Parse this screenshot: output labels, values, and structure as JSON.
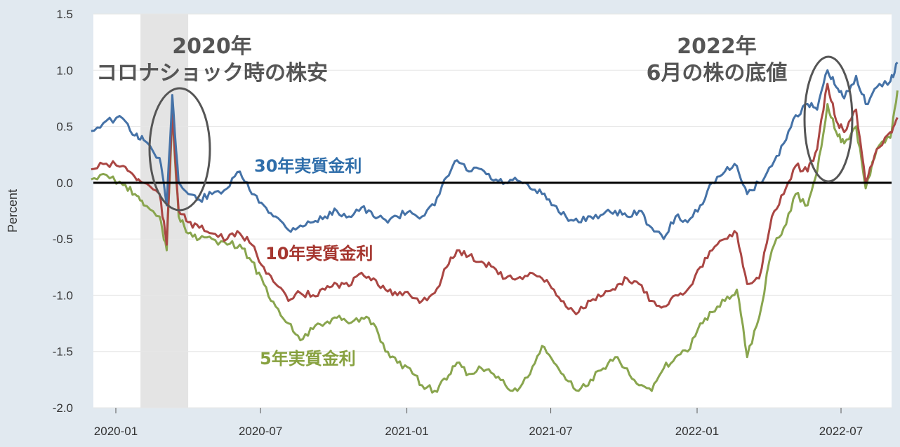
{
  "chart_data": {
    "type": "line",
    "ylabel": "Percent",
    "ylim": [
      -2.0,
      1.5
    ],
    "yticks": [
      "1.5",
      "1.0",
      "0.5",
      "0.0",
      "-0.5",
      "-1.0",
      "-1.5",
      "-2.0"
    ],
    "xticks": [
      "2020-01",
      "2020-07",
      "2021-01",
      "2021-07",
      "2022-01",
      "2022-07"
    ],
    "grid": true,
    "shaded_region": {
      "from": "2020-02",
      "to": "2020-04"
    },
    "reference_line": 0.0,
    "annotations": [
      {
        "line1": "2020年",
        "line2": "コロナショック時の株安",
        "at": "2020-03"
      },
      {
        "line1": "2022年",
        "line2": "6月の株の底値",
        "at": "2022-06"
      }
    ],
    "series": [
      {
        "name": "30年実質金利",
        "color": "#4572a7",
        "points": [
          [
            "2019-12-01",
            0.46
          ],
          [
            "2019-12-20",
            0.55
          ],
          [
            "2020-01-10",
            0.57
          ],
          [
            "2020-01-25",
            0.42
          ],
          [
            "2020-02-05",
            0.38
          ],
          [
            "2020-02-25",
            0.22
          ],
          [
            "2020-03-05",
            -0.2
          ],
          [
            "2020-03-12",
            0.78
          ],
          [
            "2020-03-20",
            0.0
          ],
          [
            "2020-04-01",
            -0.1
          ],
          [
            "2020-04-15",
            -0.15
          ],
          [
            "2020-05-01",
            -0.1
          ],
          [
            "2020-05-20",
            -0.05
          ],
          [
            "2020-06-05",
            0.1
          ],
          [
            "2020-06-20",
            -0.1
          ],
          [
            "2020-07-05",
            -0.2
          ],
          [
            "2020-07-20",
            -0.3
          ],
          [
            "2020-08-05",
            -0.42
          ],
          [
            "2020-08-20",
            -0.38
          ],
          [
            "2020-09-05",
            -0.35
          ],
          [
            "2020-09-20",
            -0.3
          ],
          [
            "2020-10-05",
            -0.25
          ],
          [
            "2020-10-20",
            -0.3
          ],
          [
            "2020-11-05",
            -0.22
          ],
          [
            "2020-11-20",
            -0.3
          ],
          [
            "2020-12-05",
            -0.33
          ],
          [
            "2020-12-20",
            -0.3
          ],
          [
            "2021-01-05",
            -0.25
          ],
          [
            "2021-01-20",
            -0.3
          ],
          [
            "2021-02-05",
            -0.2
          ],
          [
            "2021-02-20",
            0.05
          ],
          [
            "2021-03-05",
            0.2
          ],
          [
            "2021-03-20",
            0.1
          ],
          [
            "2021-04-05",
            0.12
          ],
          [
            "2021-04-20",
            0.02
          ],
          [
            "2021-05-05",
            0.0
          ],
          [
            "2021-05-20",
            0.02
          ],
          [
            "2021-06-05",
            -0.05
          ],
          [
            "2021-06-20",
            -0.1
          ],
          [
            "2021-07-05",
            -0.2
          ],
          [
            "2021-07-20",
            -0.3
          ],
          [
            "2021-08-05",
            -0.35
          ],
          [
            "2021-08-20",
            -0.3
          ],
          [
            "2021-09-05",
            -0.28
          ],
          [
            "2021-09-20",
            -0.25
          ],
          [
            "2021-10-05",
            -0.3
          ],
          [
            "2021-10-20",
            -0.25
          ],
          [
            "2021-11-05",
            -0.4
          ],
          [
            "2021-11-20",
            -0.5
          ],
          [
            "2021-12-05",
            -0.3
          ],
          [
            "2021-12-20",
            -0.35
          ],
          [
            "2022-01-05",
            -0.2
          ],
          [
            "2022-01-20",
            0.0
          ],
          [
            "2022-02-05",
            0.1
          ],
          [
            "2022-02-20",
            0.15
          ],
          [
            "2022-03-05",
            -0.1
          ],
          [
            "2022-03-20",
            0.0
          ],
          [
            "2022-04-05",
            0.15
          ],
          [
            "2022-04-20",
            0.35
          ],
          [
            "2022-05-05",
            0.6
          ],
          [
            "2022-05-20",
            0.7
          ],
          [
            "2022-06-01",
            0.65
          ],
          [
            "2022-06-14",
            1.0
          ],
          [
            "2022-06-25",
            0.85
          ],
          [
            "2022-07-05",
            0.75
          ],
          [
            "2022-07-20",
            0.95
          ],
          [
            "2022-08-01",
            0.7
          ],
          [
            "2022-08-15",
            0.85
          ],
          [
            "2022-09-01",
            0.9
          ],
          [
            "2022-09-10",
            1.07
          ]
        ]
      },
      {
        "name": "10年実質金利",
        "color": "#aa4643",
        "points": [
          [
            "2019-12-01",
            0.12
          ],
          [
            "2019-12-20",
            0.17
          ],
          [
            "2020-01-10",
            0.15
          ],
          [
            "2020-01-25",
            0.05
          ],
          [
            "2020-02-05",
            0.0
          ],
          [
            "2020-02-25",
            -0.1
          ],
          [
            "2020-03-05",
            -0.55
          ],
          [
            "2020-03-12",
            0.65
          ],
          [
            "2020-03-20",
            -0.25
          ],
          [
            "2020-04-01",
            -0.35
          ],
          [
            "2020-04-15",
            -0.4
          ],
          [
            "2020-05-01",
            -0.45
          ],
          [
            "2020-05-20",
            -0.5
          ],
          [
            "2020-06-05",
            -0.45
          ],
          [
            "2020-06-20",
            -0.55
          ],
          [
            "2020-07-05",
            -0.75
          ],
          [
            "2020-07-20",
            -0.9
          ],
          [
            "2020-08-05",
            -1.05
          ],
          [
            "2020-08-20",
            -0.98
          ],
          [
            "2020-09-05",
            -1.0
          ],
          [
            "2020-09-20",
            -0.95
          ],
          [
            "2020-10-05",
            -0.9
          ],
          [
            "2020-10-20",
            -0.92
          ],
          [
            "2020-11-05",
            -0.8
          ],
          [
            "2020-11-20",
            -0.85
          ],
          [
            "2020-12-05",
            -0.95
          ],
          [
            "2020-12-20",
            -1.0
          ],
          [
            "2021-01-05",
            -1.0
          ],
          [
            "2021-01-20",
            -1.05
          ],
          [
            "2021-02-05",
            -0.98
          ],
          [
            "2021-02-20",
            -0.75
          ],
          [
            "2021-03-05",
            -0.6
          ],
          [
            "2021-03-20",
            -0.65
          ],
          [
            "2021-04-05",
            -0.7
          ],
          [
            "2021-04-20",
            -0.75
          ],
          [
            "2021-05-05",
            -0.85
          ],
          [
            "2021-05-20",
            -0.85
          ],
          [
            "2021-06-05",
            -0.8
          ],
          [
            "2021-06-20",
            -0.85
          ],
          [
            "2021-07-05",
            -0.95
          ],
          [
            "2021-07-20",
            -1.1
          ],
          [
            "2021-08-05",
            -1.15
          ],
          [
            "2021-08-20",
            -1.05
          ],
          [
            "2021-09-05",
            -1.0
          ],
          [
            "2021-09-20",
            -0.95
          ],
          [
            "2021-10-05",
            -0.85
          ],
          [
            "2021-10-20",
            -0.9
          ],
          [
            "2021-11-05",
            -1.05
          ],
          [
            "2021-11-20",
            -1.1
          ],
          [
            "2021-12-05",
            -1.0
          ],
          [
            "2021-12-20",
            -0.95
          ],
          [
            "2022-01-05",
            -0.75
          ],
          [
            "2022-01-20",
            -0.6
          ],
          [
            "2022-02-05",
            -0.5
          ],
          [
            "2022-02-20",
            -0.45
          ],
          [
            "2022-03-05",
            -0.9
          ],
          [
            "2022-03-20",
            -0.85
          ],
          [
            "2022-04-05",
            -0.3
          ],
          [
            "2022-04-20",
            -0.1
          ],
          [
            "2022-05-05",
            0.15
          ],
          [
            "2022-05-20",
            0.1
          ],
          [
            "2022-06-01",
            0.3
          ],
          [
            "2022-06-14",
            0.88
          ],
          [
            "2022-06-25",
            0.55
          ],
          [
            "2022-07-05",
            0.45
          ],
          [
            "2022-07-20",
            0.65
          ],
          [
            "2022-08-01",
            0.0
          ],
          [
            "2022-08-15",
            0.3
          ],
          [
            "2022-09-01",
            0.45
          ],
          [
            "2022-09-10",
            0.58
          ]
        ]
      },
      {
        "name": "5年実質金利",
        "color": "#89a54e",
        "points": [
          [
            "2019-12-01",
            0.03
          ],
          [
            "2019-12-20",
            0.07
          ],
          [
            "2020-01-10",
            -0.02
          ],
          [
            "2020-01-25",
            -0.1
          ],
          [
            "2020-02-05",
            -0.2
          ],
          [
            "2020-02-25",
            -0.3
          ],
          [
            "2020-03-05",
            -0.6
          ],
          [
            "2020-03-12",
            0.6
          ],
          [
            "2020-03-20",
            -0.3
          ],
          [
            "2020-04-01",
            -0.45
          ],
          [
            "2020-04-15",
            -0.5
          ],
          [
            "2020-05-01",
            -0.5
          ],
          [
            "2020-05-20",
            -0.55
          ],
          [
            "2020-06-05",
            -0.55
          ],
          [
            "2020-06-20",
            -0.7
          ],
          [
            "2020-07-05",
            -0.9
          ],
          [
            "2020-07-20",
            -1.1
          ],
          [
            "2020-08-05",
            -1.25
          ],
          [
            "2020-08-20",
            -1.4
          ],
          [
            "2020-09-05",
            -1.3
          ],
          [
            "2020-09-20",
            -1.25
          ],
          [
            "2020-10-05",
            -1.2
          ],
          [
            "2020-10-20",
            -1.25
          ],
          [
            "2020-11-05",
            -1.2
          ],
          [
            "2020-11-20",
            -1.25
          ],
          [
            "2020-12-05",
            -1.5
          ],
          [
            "2020-12-20",
            -1.6
          ],
          [
            "2021-01-05",
            -1.65
          ],
          [
            "2021-01-20",
            -1.8
          ],
          [
            "2021-02-05",
            -1.85
          ],
          [
            "2021-02-20",
            -1.75
          ],
          [
            "2021-03-05",
            -1.6
          ],
          [
            "2021-03-20",
            -1.7
          ],
          [
            "2021-04-05",
            -1.65
          ],
          [
            "2021-04-20",
            -1.7
          ],
          [
            "2021-05-05",
            -1.8
          ],
          [
            "2021-05-20",
            -1.85
          ],
          [
            "2021-06-05",
            -1.7
          ],
          [
            "2021-06-20",
            -1.45
          ],
          [
            "2021-07-05",
            -1.6
          ],
          [
            "2021-07-20",
            -1.75
          ],
          [
            "2021-08-05",
            -1.85
          ],
          [
            "2021-08-20",
            -1.75
          ],
          [
            "2021-09-05",
            -1.65
          ],
          [
            "2021-09-20",
            -1.55
          ],
          [
            "2021-10-05",
            -1.65
          ],
          [
            "2021-10-20",
            -1.8
          ],
          [
            "2021-11-05",
            -1.85
          ],
          [
            "2021-11-20",
            -1.65
          ],
          [
            "2021-12-05",
            -1.55
          ],
          [
            "2021-12-20",
            -1.5
          ],
          [
            "2022-01-05",
            -1.25
          ],
          [
            "2022-01-20",
            -1.15
          ],
          [
            "2022-02-05",
            -1.05
          ],
          [
            "2022-02-20",
            -0.95
          ],
          [
            "2022-03-05",
            -1.55
          ],
          [
            "2022-03-20",
            -1.2
          ],
          [
            "2022-04-05",
            -0.6
          ],
          [
            "2022-04-20",
            -0.4
          ],
          [
            "2022-05-05",
            -0.1
          ],
          [
            "2022-05-20",
            -0.2
          ],
          [
            "2022-06-01",
            0.1
          ],
          [
            "2022-06-14",
            0.7
          ],
          [
            "2022-06-25",
            0.45
          ],
          [
            "2022-07-05",
            0.35
          ],
          [
            "2022-07-20",
            0.5
          ],
          [
            "2022-08-01",
            -0.05
          ],
          [
            "2022-08-15",
            0.3
          ],
          [
            "2022-09-01",
            0.4
          ],
          [
            "2022-09-10",
            0.82
          ]
        ]
      }
    ]
  },
  "labels": {
    "s30": "30年実質金利",
    "s10": "10年実質金利",
    "s5": "5年実質金利",
    "anno1_line1": "2020年",
    "anno1_line2": "コロナショック時の株安",
    "anno2_line1": "2022年",
    "anno2_line2": "6月の株の底値",
    "ylabel": "Percent"
  }
}
